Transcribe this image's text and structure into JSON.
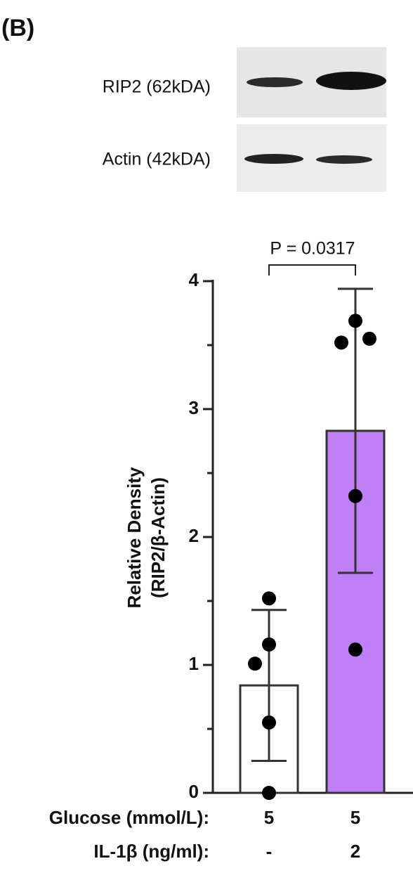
{
  "panel_label": "(B)",
  "blot": {
    "labels": [
      "RIP2 (62kDA)",
      "Actin (42kDA)"
    ]
  },
  "chart_data": {
    "type": "bar",
    "y_label": [
      "Relative Density",
      "(RIP2/β-Actin)"
    ],
    "annotation": "P = 0.0317",
    "x_rows": [
      {
        "label": "Glucose (mmol/L):",
        "values": [
          "5",
          "5"
        ]
      },
      {
        "label": "IL-1β (ng/ml):",
        "values": [
          "-",
          "2"
        ]
      }
    ],
    "values": [
      0.84,
      2.83
    ],
    "errors": [
      0.59,
      1.11
    ],
    "colors": [
      "#ffffff",
      "#bf80f7"
    ],
    "points": [
      [
        1.52,
        1.16,
        1.01,
        0.55,
        0.0
      ],
      [
        3.69,
        3.52,
        3.55,
        2.32,
        1.12
      ]
    ],
    "ylim": [
      0,
      4
    ],
    "yticks": [
      0,
      1,
      2,
      3,
      4
    ],
    "yminorticks": [
      0.5,
      1.5,
      2.5,
      3.5
    ]
  }
}
